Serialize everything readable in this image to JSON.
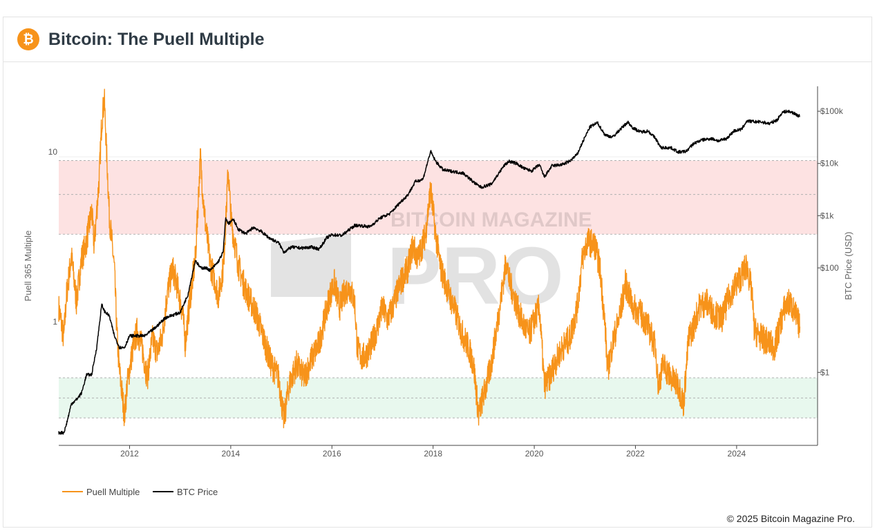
{
  "header": {
    "title": "Bitcoin: The Puell Multiple",
    "logo_glyph": "₿",
    "logo_color": "#f7931a"
  },
  "watermark": {
    "line1": "BITCOIN MAGAZINE",
    "line2": "PRO"
  },
  "footer": {
    "copyright": "© 2025 Bitcoin Magazine Pro."
  },
  "colors": {
    "puell": "#f7931a",
    "price": "#000000",
    "red_band": "#fde2e2",
    "green_band": "#e8f8ee"
  },
  "chart_data": {
    "type": "line",
    "title": "Bitcoin: The Puell Multiple",
    "x_range": [
      2010.6,
      2025.6
    ],
    "x_ticks": [
      {
        "value": 2012,
        "label": "2012"
      },
      {
        "value": 2014,
        "label": "2014"
      },
      {
        "value": 2016,
        "label": "2016"
      },
      {
        "value": 2018,
        "label": "2018"
      },
      {
        "value": 2020,
        "label": "2020"
      },
      {
        "value": 2022,
        "label": "2022"
      },
      {
        "value": 2024,
        "label": "2024"
      }
    ],
    "y_left": {
      "label": "Puell 365 Multiple",
      "scale": "log",
      "range": [
        0.2,
        26
      ],
      "ticks": [
        {
          "value": 1,
          "label": "1"
        },
        {
          "value": 10,
          "label": "10"
        }
      ]
    },
    "y_right": {
      "label": "BTC Price (USD)",
      "scale": "log",
      "range": [
        0.04,
        300000
      ],
      "ticks": [
        {
          "value": 1,
          "label": "$1"
        },
        {
          "value": 100,
          "label": "$100"
        },
        {
          "value": 1000,
          "label": "$1k"
        },
        {
          "value": 10000,
          "label": "$10k"
        },
        {
          "value": 100000,
          "label": "$100k"
        }
      ]
    },
    "bands": [
      {
        "name": "high",
        "from": 3.5,
        "to": 9.5,
        "lines": [
          3.5,
          6,
          9.5
        ]
      },
      {
        "name": "low",
        "from": 0.29,
        "to": 0.5,
        "lines": [
          0.29,
          0.38,
          0.5
        ]
      }
    ],
    "legend": [
      "Puell Multiple",
      "BTC Price"
    ],
    "series": [
      {
        "name": "Puell Multiple",
        "axis": "left",
        "points": [
          [
            2010.6,
            1.3
          ],
          [
            2010.7,
            0.85
          ],
          [
            2010.75,
            1.5
          ],
          [
            2010.85,
            2.6
          ],
          [
            2010.95,
            1.4
          ],
          [
            2011.05,
            2.5
          ],
          [
            2011.15,
            3.2
          ],
          [
            2011.25,
            4.8
          ],
          [
            2011.3,
            3.0
          ],
          [
            2011.4,
            7.5
          ],
          [
            2011.45,
            16
          ],
          [
            2011.5,
            22
          ],
          [
            2011.55,
            10
          ],
          [
            2011.6,
            4.5
          ],
          [
            2011.7,
            2.2
          ],
          [
            2011.75,
            0.9
          ],
          [
            2011.8,
            0.55
          ],
          [
            2011.9,
            0.3
          ],
          [
            2011.95,
            0.45
          ],
          [
            2012.05,
            0.7
          ],
          [
            2012.15,
            0.95
          ],
          [
            2012.25,
            0.75
          ],
          [
            2012.35,
            0.5
          ],
          [
            2012.45,
            0.85
          ],
          [
            2012.55,
            0.7
          ],
          [
            2012.65,
            0.9
          ],
          [
            2012.75,
            1.6
          ],
          [
            2012.85,
            2.2
          ],
          [
            2012.95,
            1.7
          ],
          [
            2013.05,
            1.2
          ],
          [
            2013.1,
            0.8
          ],
          [
            2013.2,
            1.5
          ],
          [
            2013.3,
            2.5
          ],
          [
            2013.35,
            5.0
          ],
          [
            2013.4,
            10
          ],
          [
            2013.45,
            6
          ],
          [
            2013.5,
            4
          ],
          [
            2013.6,
            2.3
          ],
          [
            2013.7,
            1.8
          ],
          [
            2013.75,
            1.5
          ],
          [
            2013.85,
            2.2
          ],
          [
            2013.9,
            4
          ],
          [
            2013.95,
            8.5
          ],
          [
            2014.0,
            4.5
          ],
          [
            2014.05,
            3.5
          ],
          [
            2014.15,
            2.3
          ],
          [
            2014.25,
            1.8
          ],
          [
            2014.35,
            1.5
          ],
          [
            2014.5,
            1.2
          ],
          [
            2014.65,
            0.85
          ],
          [
            2014.8,
            0.6
          ],
          [
            2014.95,
            0.5
          ],
          [
            2015.05,
            0.28
          ],
          [
            2015.15,
            0.45
          ],
          [
            2015.3,
            0.6
          ],
          [
            2015.45,
            0.5
          ],
          [
            2015.6,
            0.65
          ],
          [
            2015.75,
            0.8
          ],
          [
            2015.85,
            1.1
          ],
          [
            2015.95,
            1.5
          ],
          [
            2016.05,
            1.8
          ],
          [
            2016.15,
            1.3
          ],
          [
            2016.25,
            1.6
          ],
          [
            2016.35,
            1.7
          ],
          [
            2016.45,
            1.4
          ],
          [
            2016.5,
            0.75
          ],
          [
            2016.6,
            0.65
          ],
          [
            2016.7,
            0.7
          ],
          [
            2016.8,
            0.8
          ],
          [
            2016.9,
            1.0
          ],
          [
            2017.0,
            1.3
          ],
          [
            2017.1,
            1.1
          ],
          [
            2017.2,
            1.3
          ],
          [
            2017.35,
            1.8
          ],
          [
            2017.5,
            2.2
          ],
          [
            2017.6,
            3.0
          ],
          [
            2017.7,
            2.5
          ],
          [
            2017.85,
            3.5
          ],
          [
            2017.95,
            6.5
          ],
          [
            2018.05,
            3.5
          ],
          [
            2018.15,
            2.2
          ],
          [
            2018.3,
            1.6
          ],
          [
            2018.45,
            1.2
          ],
          [
            2018.55,
            0.95
          ],
          [
            2018.7,
            0.75
          ],
          [
            2018.8,
            0.6
          ],
          [
            2018.9,
            0.3
          ],
          [
            2018.95,
            0.35
          ],
          [
            2019.05,
            0.45
          ],
          [
            2019.15,
            0.6
          ],
          [
            2019.3,
            1.2
          ],
          [
            2019.45,
            2.5
          ],
          [
            2019.5,
            1.9
          ],
          [
            2019.6,
            1.5
          ],
          [
            2019.7,
            1.2
          ],
          [
            2019.8,
            1.0
          ],
          [
            2019.9,
            0.9
          ],
          [
            2020.0,
            1.1
          ],
          [
            2020.1,
            1.3
          ],
          [
            2020.2,
            0.45
          ],
          [
            2020.3,
            0.5
          ],
          [
            2020.4,
            0.6
          ],
          [
            2020.55,
            0.75
          ],
          [
            2020.7,
            0.85
          ],
          [
            2020.85,
            1.3
          ],
          [
            2020.95,
            2.5
          ],
          [
            2021.05,
            3.2
          ],
          [
            2021.2,
            3.0
          ],
          [
            2021.3,
            2.2
          ],
          [
            2021.4,
            1.0
          ],
          [
            2021.45,
            0.55
          ],
          [
            2021.55,
            0.8
          ],
          [
            2021.7,
            1.2
          ],
          [
            2021.8,
            1.8
          ],
          [
            2021.95,
            1.3
          ],
          [
            2022.1,
            1.2
          ],
          [
            2022.25,
            1.0
          ],
          [
            2022.4,
            0.75
          ],
          [
            2022.45,
            0.45
          ],
          [
            2022.55,
            0.6
          ],
          [
            2022.7,
            0.5
          ],
          [
            2022.85,
            0.45
          ],
          [
            2022.95,
            0.35
          ],
          [
            2023.05,
            0.85
          ],
          [
            2023.15,
            1.0
          ],
          [
            2023.25,
            1.3
          ],
          [
            2023.4,
            1.4
          ],
          [
            2023.55,
            1.2
          ],
          [
            2023.7,
            1.1
          ],
          [
            2023.85,
            1.5
          ],
          [
            2024.0,
            1.8
          ],
          [
            2024.1,
            2.0
          ],
          [
            2024.2,
            2.3
          ],
          [
            2024.3,
            1.6
          ],
          [
            2024.35,
            0.95
          ],
          [
            2024.5,
            0.85
          ],
          [
            2024.65,
            0.8
          ],
          [
            2024.75,
            0.75
          ],
          [
            2024.85,
            1.0
          ],
          [
            2024.95,
            1.3
          ],
          [
            2025.05,
            1.4
          ],
          [
            2025.15,
            1.2
          ],
          [
            2025.25,
            1.0
          ]
        ]
      },
      {
        "name": "BTC Price",
        "axis": "right",
        "points": [
          [
            2010.6,
            0.07
          ],
          [
            2010.7,
            0.07
          ],
          [
            2010.75,
            0.1
          ],
          [
            2010.85,
            0.25
          ],
          [
            2010.95,
            0.3
          ],
          [
            2011.05,
            0.4
          ],
          [
            2011.15,
            0.9
          ],
          [
            2011.25,
            0.9
          ],
          [
            2011.35,
            3
          ],
          [
            2011.45,
            20
          ],
          [
            2011.5,
            15
          ],
          [
            2011.6,
            12
          ],
          [
            2011.7,
            5
          ],
          [
            2011.8,
            3
          ],
          [
            2011.9,
            3
          ],
          [
            2012.0,
            5
          ],
          [
            2012.15,
            5
          ],
          [
            2012.3,
            5
          ],
          [
            2012.5,
            7
          ],
          [
            2012.7,
            11
          ],
          [
            2012.9,
            13
          ],
          [
            2013.0,
            14
          ],
          [
            2013.15,
            30
          ],
          [
            2013.3,
            140
          ],
          [
            2013.4,
            100
          ],
          [
            2013.5,
            100
          ],
          [
            2013.6,
            90
          ],
          [
            2013.75,
            130
          ],
          [
            2013.85,
            200
          ],
          [
            2013.9,
            900
          ],
          [
            2013.95,
            700
          ],
          [
            2014.05,
            850
          ],
          [
            2014.15,
            550
          ],
          [
            2014.3,
            450
          ],
          [
            2014.45,
            600
          ],
          [
            2014.6,
            500
          ],
          [
            2014.75,
            380
          ],
          [
            2014.95,
            300
          ],
          [
            2015.05,
            200
          ],
          [
            2015.2,
            250
          ],
          [
            2015.4,
            240
          ],
          [
            2015.6,
            250
          ],
          [
            2015.75,
            230
          ],
          [
            2015.9,
            380
          ],
          [
            2016.0,
            430
          ],
          [
            2016.2,
            420
          ],
          [
            2016.45,
            650
          ],
          [
            2016.55,
            650
          ],
          [
            2016.75,
            610
          ],
          [
            2016.95,
            900
          ],
          [
            2017.15,
            1100
          ],
          [
            2017.35,
            1800
          ],
          [
            2017.5,
            2500
          ],
          [
            2017.65,
            4500
          ],
          [
            2017.8,
            5000
          ],
          [
            2017.95,
            17000
          ],
          [
            2018.05,
            11000
          ],
          [
            2018.2,
            7500
          ],
          [
            2018.4,
            7000
          ],
          [
            2018.6,
            6500
          ],
          [
            2018.85,
            4000
          ],
          [
            2018.95,
            3500
          ],
          [
            2019.15,
            4000
          ],
          [
            2019.4,
            9000
          ],
          [
            2019.5,
            11000
          ],
          [
            2019.65,
            10000
          ],
          [
            2019.8,
            8000
          ],
          [
            2019.95,
            7200
          ],
          [
            2020.1,
            9500
          ],
          [
            2020.2,
            5500
          ],
          [
            2020.35,
            9000
          ],
          [
            2020.55,
            9500
          ],
          [
            2020.7,
            11000
          ],
          [
            2020.85,
            15000
          ],
          [
            2020.95,
            25000
          ],
          [
            2021.1,
            50000
          ],
          [
            2021.25,
            60000
          ],
          [
            2021.4,
            35000
          ],
          [
            2021.55,
            32000
          ],
          [
            2021.7,
            45000
          ],
          [
            2021.85,
            62000
          ],
          [
            2021.95,
            48000
          ],
          [
            2022.1,
            40000
          ],
          [
            2022.25,
            42000
          ],
          [
            2022.4,
            30000
          ],
          [
            2022.5,
            20000
          ],
          [
            2022.7,
            20000
          ],
          [
            2022.85,
            16500
          ],
          [
            2023.0,
            17000
          ],
          [
            2023.15,
            24000
          ],
          [
            2023.3,
            28000
          ],
          [
            2023.5,
            30000
          ],
          [
            2023.65,
            27000
          ],
          [
            2023.8,
            30000
          ],
          [
            2023.95,
            42000
          ],
          [
            2024.1,
            45000
          ],
          [
            2024.2,
            65000
          ],
          [
            2024.35,
            63000
          ],
          [
            2024.5,
            62000
          ],
          [
            2024.65,
            58000
          ],
          [
            2024.8,
            68000
          ],
          [
            2024.9,
            95000
          ],
          [
            2025.0,
            100000
          ],
          [
            2025.1,
            95000
          ],
          [
            2025.2,
            84000
          ],
          [
            2025.25,
            80000
          ]
        ]
      }
    ]
  }
}
